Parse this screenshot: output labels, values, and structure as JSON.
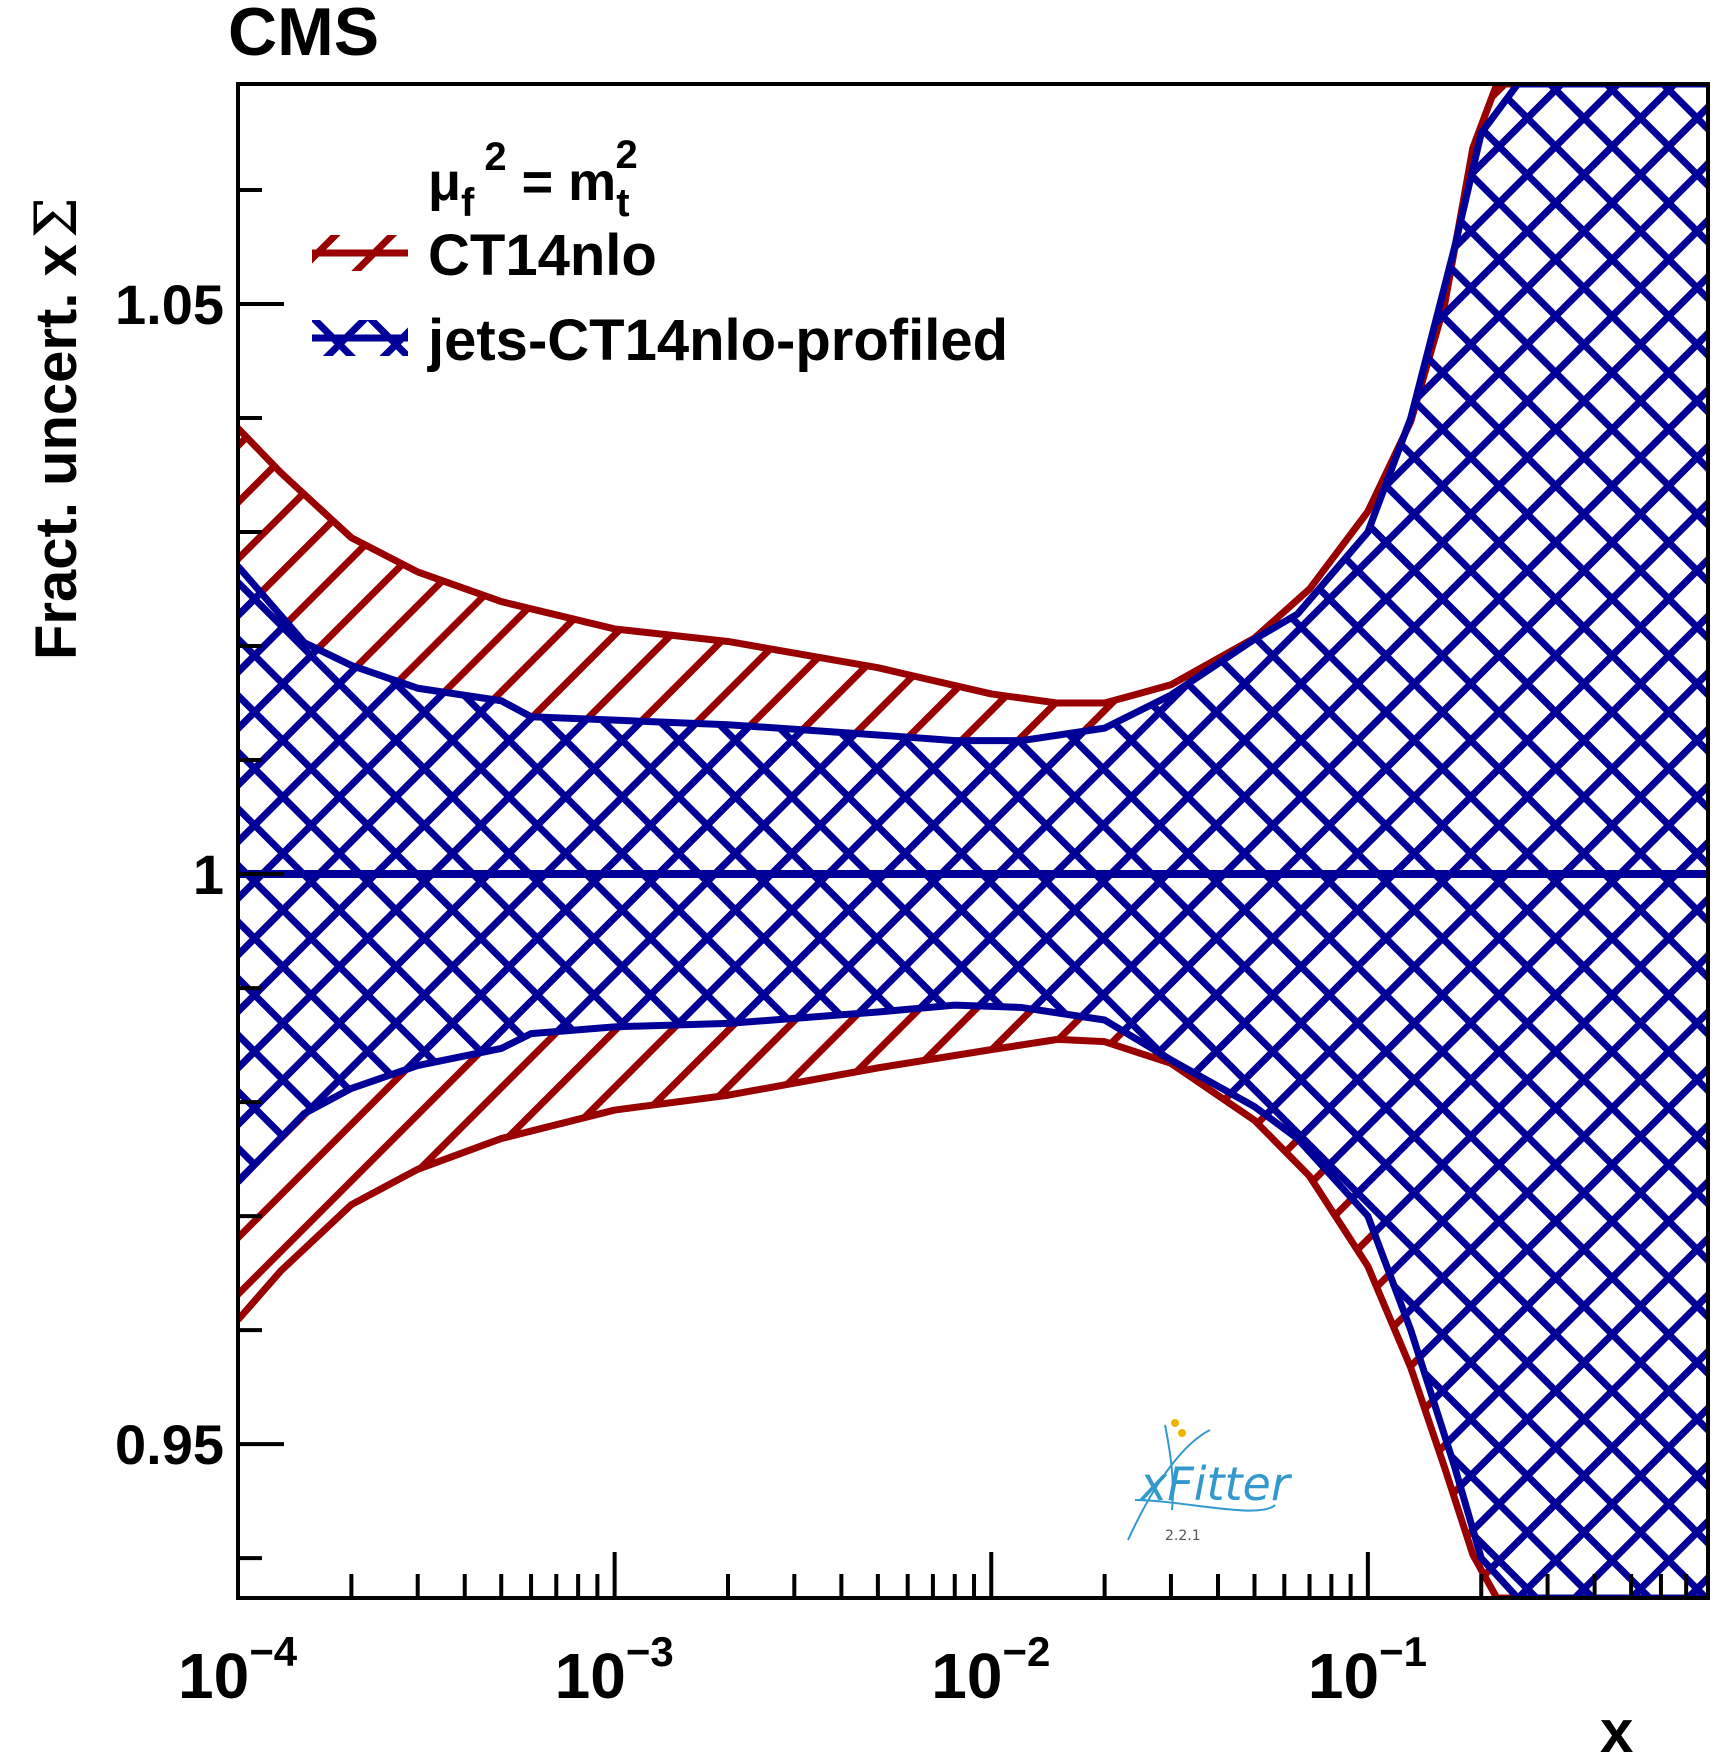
{
  "experiment_label": "CMS",
  "colors": {
    "ct14": "#990000",
    "profiled": "#000099",
    "axis": "#000000",
    "logo": "#3399cc",
    "logo_accent": "#f0b400"
  },
  "logo": {
    "name": "xFitter",
    "x": "x",
    "fitter": "Fitter",
    "version": "2.2.1"
  },
  "chart_data": {
    "type": "area",
    "title": "",
    "xlabel": "x",
    "ylabel": "Fract. uncert. xΣ",
    "ylabel_main": "Fract. uncert. x",
    "ylabel_symbol": "Σ",
    "xscale": "log",
    "xlim": [
      0.0001,
      0.8
    ],
    "ylim": [
      0.9365,
      1.0693
    ],
    "x_ticks": [
      {
        "value": 0.0001,
        "base": "10",
        "exp": "−4"
      },
      {
        "value": 0.001,
        "base": "10",
        "exp": "−3"
      },
      {
        "value": 0.01,
        "base": "10",
        "exp": "−2"
      },
      {
        "value": 0.1,
        "base": "10",
        "exp": "−1"
      }
    ],
    "y_ticks": [
      {
        "value": 0.95,
        "label": "0.95"
      },
      {
        "value": 1.0,
        "label": "1"
      },
      {
        "value": 1.05,
        "label": "1.05"
      }
    ],
    "legend": {
      "position": "top-left",
      "header": {
        "mu": "μ",
        "f": "f",
        "exp": "2",
        "eq": " = m",
        "t": "t",
        "t_exp": "2"
      },
      "header_text": "μf² = mt²",
      "entries": [
        {
          "label": "CT14nlo",
          "series": "ct14"
        },
        {
          "label": "jets-CT14nlo-profiled",
          "series": "profiled"
        }
      ]
    },
    "central": {
      "name": "central value",
      "value": 1.0
    },
    "series": [
      {
        "id": "ct14",
        "name": "CT14nlo",
        "hatch": "single",
        "x": [
          0.0001,
          0.00013,
          0.0002,
          0.0003,
          0.0005,
          0.001,
          0.002,
          0.005,
          0.01,
          0.015,
          0.02,
          0.03,
          0.05,
          0.07,
          0.1,
          0.13,
          0.16,
          0.19,
          0.22,
          0.3,
          0.5,
          0.8
        ],
        "upper": [
          1.0391,
          1.0352,
          1.0295,
          1.0265,
          1.0239,
          1.0215,
          1.0204,
          1.0181,
          1.0158,
          1.015,
          1.015,
          1.0166,
          1.0207,
          1.025,
          1.0318,
          1.0397,
          1.05,
          1.0637,
          1.0693,
          1.0693,
          1.0693,
          1.0693
        ],
        "lower": [
          0.9609,
          0.9652,
          0.971,
          0.9741,
          0.9768,
          0.9793,
          0.9806,
          0.983,
          0.9846,
          0.9855,
          0.9853,
          0.9834,
          0.9784,
          0.9735,
          0.9656,
          0.9567,
          0.9479,
          0.9403,
          0.9365,
          0.9365,
          0.9365,
          0.9365
        ]
      },
      {
        "id": "profiled",
        "name": "jets-CT14nlo-profiled",
        "hatch": "cross",
        "x": [
          0.0001,
          0.00015,
          0.0002,
          0.0003,
          0.0005,
          0.0006,
          0.001,
          0.002,
          0.005,
          0.008,
          0.012,
          0.02,
          0.03,
          0.05,
          0.065,
          0.1,
          0.13,
          0.17,
          0.2,
          0.25,
          0.8
        ],
        "upper": [
          1.027,
          1.0203,
          1.0183,
          1.0163,
          1.0152,
          1.0138,
          1.0135,
          1.0131,
          1.0122,
          1.0117,
          1.0117,
          1.0128,
          1.0157,
          1.0206,
          1.0228,
          1.03,
          1.04,
          1.055,
          1.065,
          1.0693,
          1.0693
        ],
        "lower": [
          0.973,
          0.979,
          0.9812,
          0.9832,
          0.9847,
          0.986,
          0.9866,
          0.9869,
          0.9879,
          0.9885,
          0.9883,
          0.9872,
          0.9837,
          0.9796,
          0.9768,
          0.97,
          0.96,
          0.948,
          0.94,
          0.9365,
          0.9365
        ]
      }
    ]
  }
}
